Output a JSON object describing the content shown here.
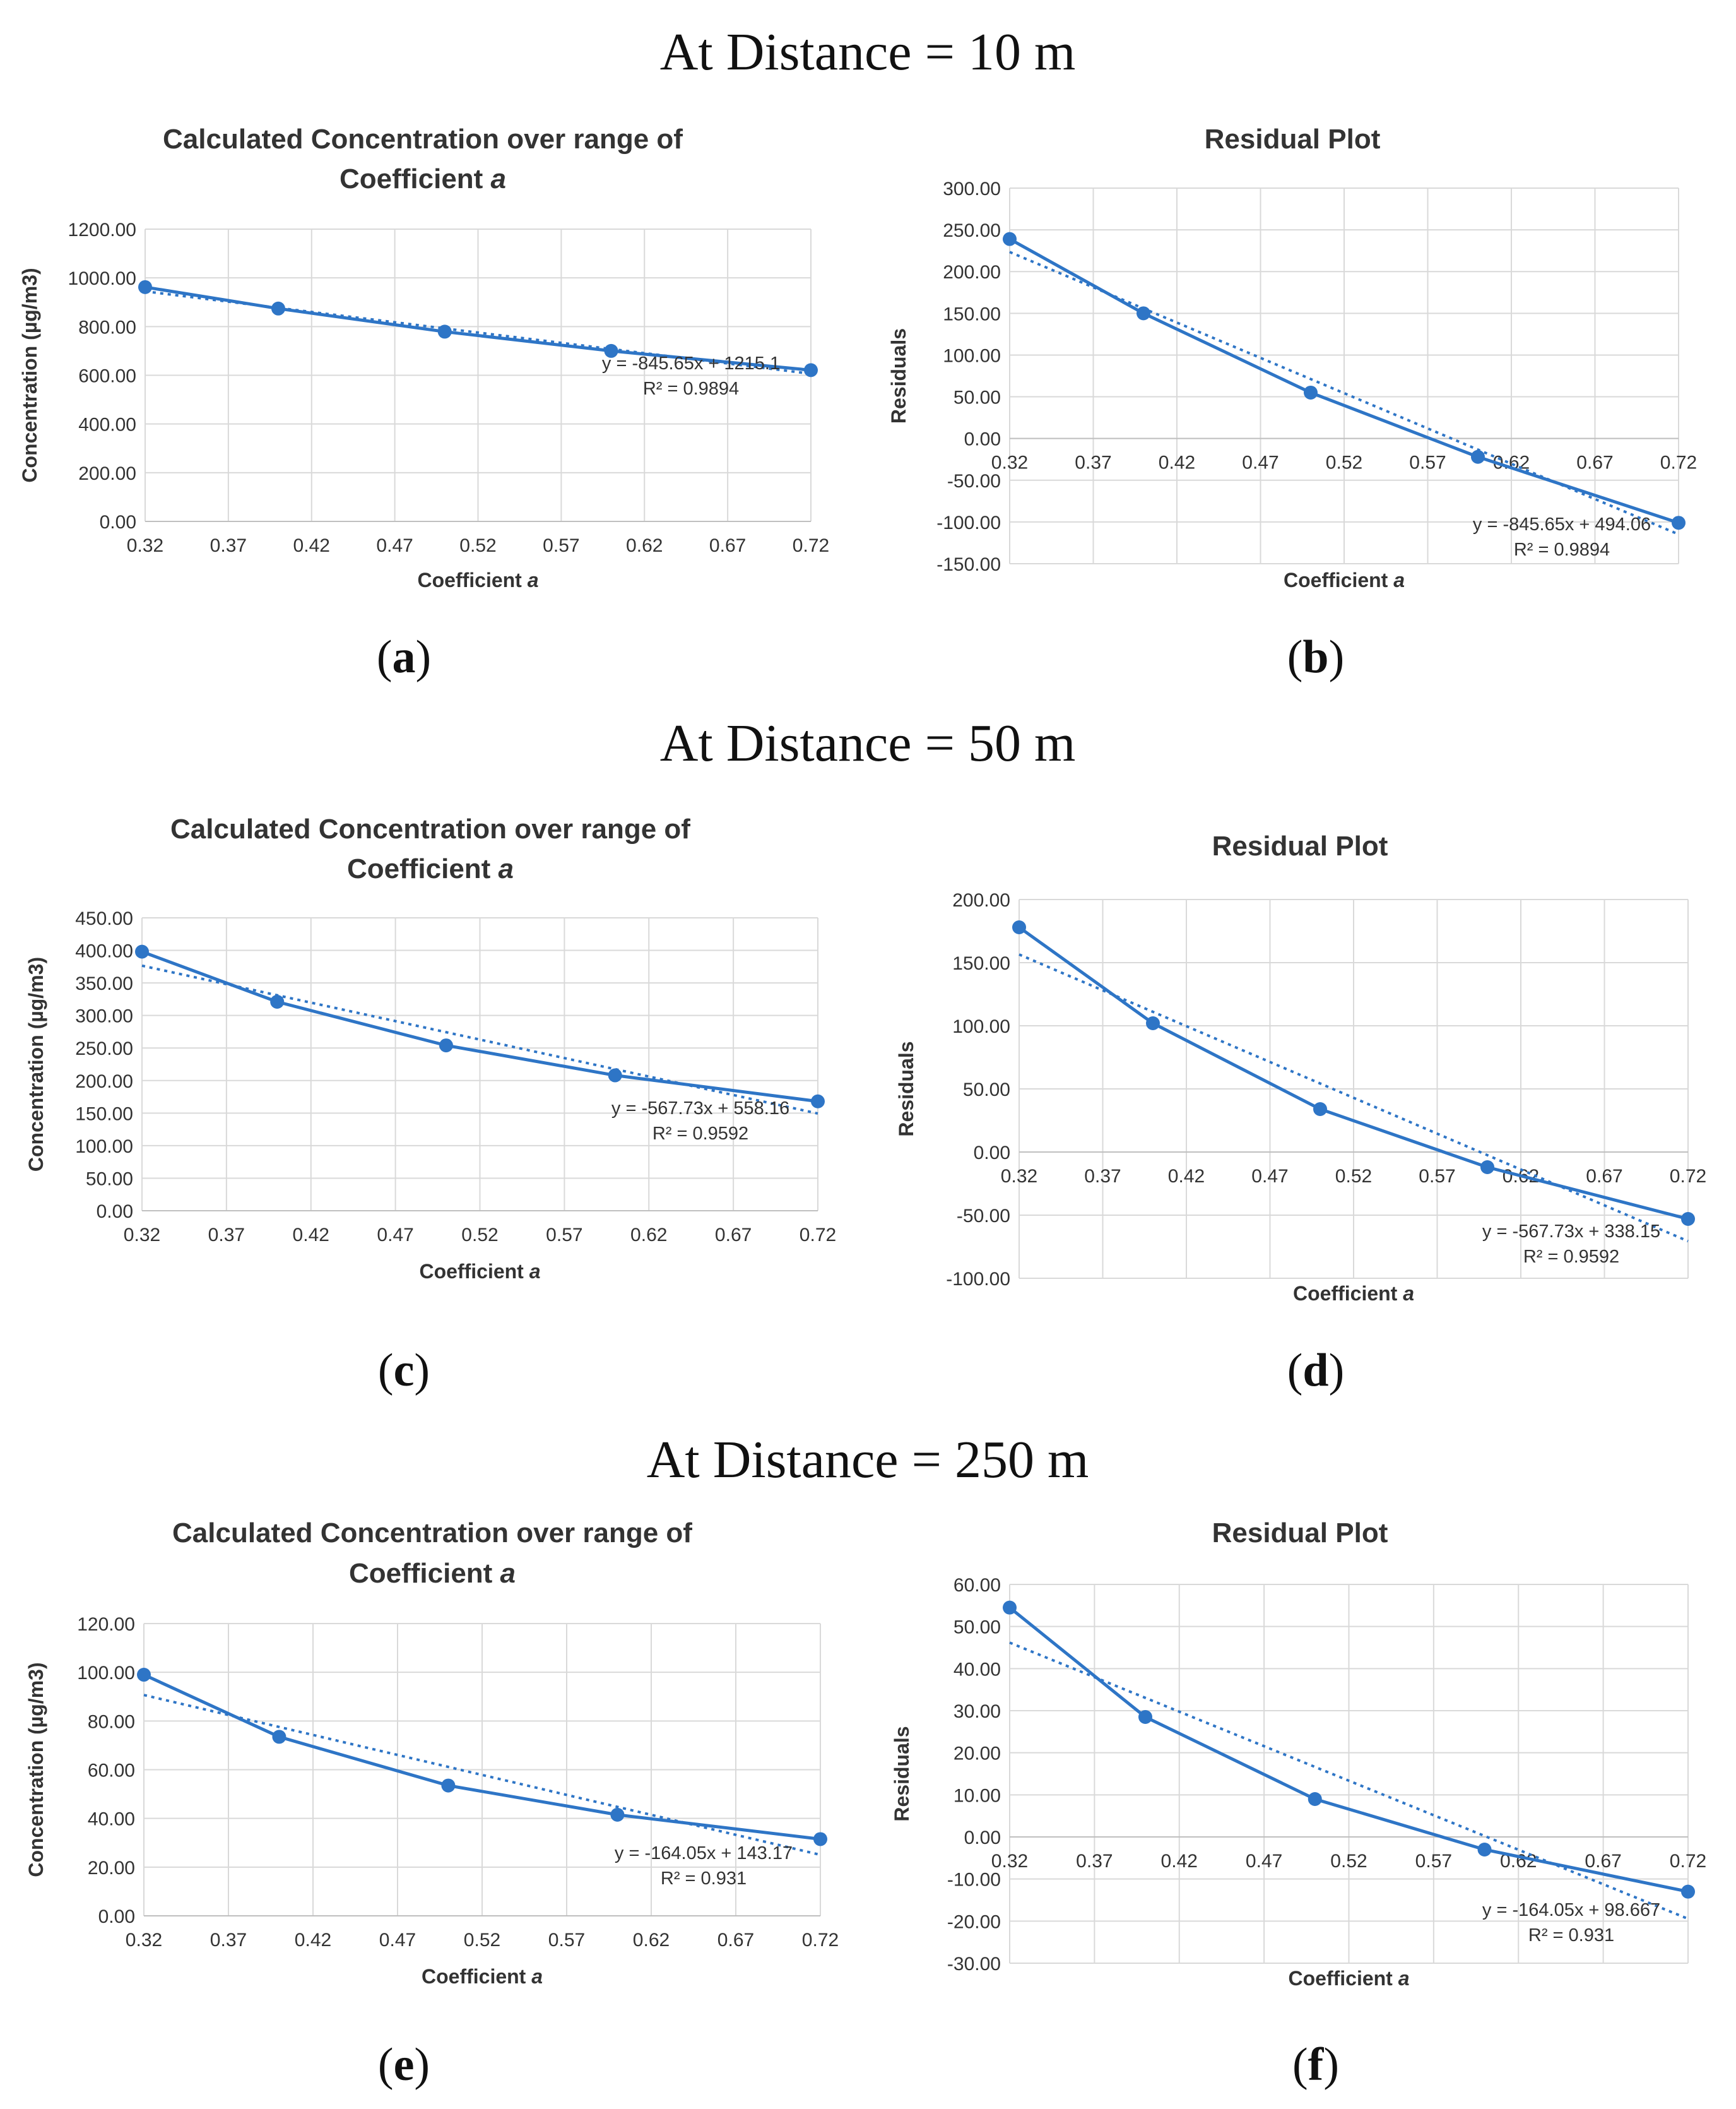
{
  "colors": {
    "series": "#2e75c6",
    "trend": "#2e75c6"
  },
  "section_titles": [
    "At Distance = 10 m",
    "At Distance = 50 m",
    "At Distance = 250 m"
  ],
  "chart_data": [
    {
      "panel": "(a)",
      "panel_letter": "a",
      "type": "line",
      "title_line1": "Calculated Concentration over range of",
      "title_line2_text": "Coefficient ",
      "title_line2_symbol": "a",
      "xlabel_text": "Coefficient ",
      "xlabel_symbol": "a",
      "ylabel": "Concentration (µg/m3)",
      "x": [
        0.32,
        0.4,
        0.5,
        0.6,
        0.72
      ],
      "values": [
        962,
        874,
        779,
        700,
        621
      ],
      "xticks": [
        "0.32",
        "0.37",
        "0.42",
        "0.47",
        "0.52",
        "0.57",
        "0.62",
        "0.67",
        "0.72"
      ],
      "xlim": [
        0.32,
        0.72
      ],
      "yticks": [
        "0.00",
        "200.00",
        "400.00",
        "600.00",
        "800.00",
        "1000.00",
        "1200.00"
      ],
      "ylim": [
        0,
        1200
      ],
      "trendline": {
        "slope": -845.65,
        "intercept": 1215.1
      },
      "equation": "y = -845.65x + 1215.1",
      "r_squared": "R² = 0.9894"
    },
    {
      "panel": "(b)",
      "panel_letter": "b",
      "type": "line",
      "title_line1": "Residual Plot",
      "xlabel_text": "Coefficient ",
      "xlabel_symbol": "a",
      "ylabel": "Residuals",
      "x": [
        0.32,
        0.4,
        0.5,
        0.6,
        0.72
      ],
      "values": [
        239,
        150,
        55,
        -22,
        -101
      ],
      "xticks": [
        "0.32",
        "0.37",
        "0.42",
        "0.47",
        "0.52",
        "0.57",
        "0.62",
        "0.67",
        "0.72"
      ],
      "xlim": [
        0.32,
        0.72
      ],
      "yticks": [
        "-150.00",
        "-100.00",
        "-50.00",
        "0.00",
        "50.00",
        "100.00",
        "150.00",
        "200.00",
        "250.00",
        "300.00"
      ],
      "ylim": [
        -150,
        300
      ],
      "trendline": {
        "slope": -845.65,
        "intercept": 494.06
      },
      "equation": "y = -845.65x + 494.06",
      "r_squared": "R² = 0.9894"
    },
    {
      "panel": "(c)",
      "panel_letter": "c",
      "type": "line",
      "title_line1": "Calculated Concentration over range of",
      "title_line2_text": "Coefficient ",
      "title_line2_symbol": "a",
      "xlabel_text": "Coefficient ",
      "xlabel_symbol": "a",
      "ylabel": "Concentration (µg/m3)",
      "x": [
        0.32,
        0.4,
        0.5,
        0.6,
        0.72
      ],
      "values": [
        398,
        321,
        254,
        208,
        168
      ],
      "xticks": [
        "0.32",
        "0.37",
        "0.42",
        "0.47",
        "0.52",
        "0.57",
        "0.62",
        "0.67",
        "0.72"
      ],
      "xlim": [
        0.32,
        0.72
      ],
      "yticks": [
        "0.00",
        "50.00",
        "100.00",
        "150.00",
        "200.00",
        "250.00",
        "300.00",
        "350.00",
        "400.00",
        "450.00"
      ],
      "ylim": [
        0,
        450
      ],
      "trendline": {
        "slope": -567.73,
        "intercept": 558.16
      },
      "equation": "y = -567.73x + 558.16",
      "r_squared": "R² = 0.9592"
    },
    {
      "panel": "(d)",
      "panel_letter": "d",
      "type": "line",
      "title_line1": "Residual Plot",
      "xlabel_text": "Coefficient ",
      "xlabel_symbol": "a",
      "ylabel": "Residuals",
      "x": [
        0.32,
        0.4,
        0.5,
        0.6,
        0.72
      ],
      "values": [
        178,
        102,
        34,
        -12,
        -53
      ],
      "xticks": [
        "0.32",
        "0.37",
        "0.42",
        "0.47",
        "0.52",
        "0.57",
        "0.62",
        "0.67",
        "0.72"
      ],
      "xlim": [
        0.32,
        0.72
      ],
      "yticks": [
        "-100.00",
        "-50.00",
        "0.00",
        "50.00",
        "100.00",
        "150.00",
        "200.00"
      ],
      "ylim": [
        -100,
        200
      ],
      "trendline": {
        "slope": -567.73,
        "intercept": 338.15
      },
      "equation": "y = -567.73x + 338.15",
      "r_squared": "R² = 0.9592"
    },
    {
      "panel": "(e)",
      "panel_letter": "e",
      "type": "line",
      "title_line1": "Calculated Concentration over range of",
      "title_line2_text": "Coefficient ",
      "title_line2_symbol": "a",
      "xlabel_text": "Coefficient ",
      "xlabel_symbol": "a",
      "ylabel": "Concentration (µg/m3)",
      "x": [
        0.32,
        0.4,
        0.5,
        0.6,
        0.72
      ],
      "values": [
        99,
        73.5,
        53.5,
        41.5,
        31.5
      ],
      "xticks": [
        "0.32",
        "0.37",
        "0.42",
        "0.47",
        "0.52",
        "0.57",
        "0.62",
        "0.67",
        "0.72"
      ],
      "xlim": [
        0.32,
        0.72
      ],
      "yticks": [
        "0.00",
        "20.00",
        "40.00",
        "60.00",
        "80.00",
        "100.00",
        "120.00"
      ],
      "ylim": [
        0,
        120
      ],
      "trendline": {
        "slope": -164.05,
        "intercept": 143.17
      },
      "equation": "y = -164.05x + 143.17",
      "r_squared": "R² = 0.931"
    },
    {
      "panel": "(f)",
      "panel_letter": "f",
      "type": "line",
      "title_line1": "Residual Plot",
      "xlabel_text": "Coefficient ",
      "xlabel_symbol": "a",
      "ylabel": "Residuals",
      "x": [
        0.32,
        0.4,
        0.5,
        0.6,
        0.72
      ],
      "values": [
        54.5,
        28.5,
        9,
        -3,
        -13
      ],
      "xticks": [
        "0.32",
        "0.37",
        "0.42",
        "0.47",
        "0.52",
        "0.57",
        "0.62",
        "0.67",
        "0.72"
      ],
      "xlim": [
        0.32,
        0.72
      ],
      "yticks": [
        "-30.00",
        "-20.00",
        "-10.00",
        "0.00",
        "10.00",
        "20.00",
        "30.00",
        "40.00",
        "50.00",
        "60.00"
      ],
      "ylim": [
        -30,
        60
      ],
      "trendline": {
        "slope": -164.05,
        "intercept": 98.667
      },
      "equation": "y = -164.05x + 98.667",
      "r_squared": "R² = 0.931"
    }
  ]
}
